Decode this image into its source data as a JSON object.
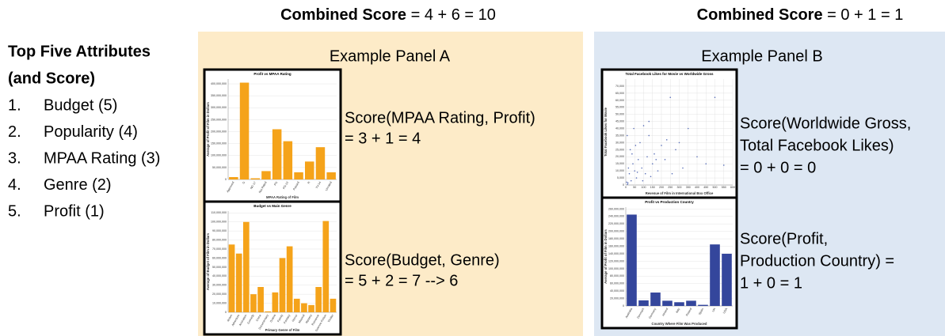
{
  "header_a": {
    "label": "Combined Score",
    "formula": "= 4 + 6 = 10"
  },
  "header_b": {
    "label": "Combined Score",
    "formula": "= 0 + 1 = 1"
  },
  "attributes": {
    "title": [
      "Top Five Attributes",
      "(and Score)"
    ],
    "items": [
      {
        "num": "1.",
        "text": "Budget (5)"
      },
      {
        "num": "2.",
        "text": "Popularity (4)"
      },
      {
        "num": "3.",
        "text": "MPAA Rating (3)"
      },
      {
        "num": "4.",
        "text": "Genre (2)"
      },
      {
        "num": "5.",
        "text": "Profit (1)"
      }
    ]
  },
  "panel_a": {
    "title": "Example Panel A",
    "scores": [
      [
        "Score(MPAA Rating, Profit)",
        "= 3 + 1 = 4"
      ],
      [
        "Score(Budget, Genre)",
        "= 5 + 2 = 7 --> 6"
      ]
    ]
  },
  "panel_b": {
    "title": "Example Panel B",
    "scores": [
      [
        "Score(Worldwide Gross,",
        " Total Facebook Likes)",
        "= 0 + 0 = 0"
      ],
      [
        "Score(Profit,",
        " Production Country) =",
        "1 + 0 = 1"
      ]
    ]
  },
  "chart_data": [
    {
      "type": "bar",
      "title": "Profit vs MPAA Rating",
      "x_label": "MPAA Rating of Film",
      "y_label": "Average of Profit of Film in Dollars",
      "color": "#f5a31a",
      "grid": true,
      "categories": [
        "Approved",
        "G",
        "NC-17",
        "Not Rated",
        "PG",
        "PG-13",
        "Passed",
        "R",
        "TV-14",
        "Unrated"
      ],
      "values": [
        10000000,
        405000000,
        5000000,
        35000000,
        210000000,
        160000000,
        30000000,
        75000000,
        135000000,
        30000000
      ],
      "ylim": [
        0,
        420000000
      ],
      "yticks": [
        0,
        {
          "value": 50000000,
          "label": "50,000,000"
        },
        {
          "value": 100000000,
          "label": "100,000,000"
        },
        {
          "value": 150000000,
          "label": "150,000,000"
        },
        {
          "value": 200000000,
          "label": "200,000,000"
        },
        {
          "value": 250000000,
          "label": "250,000,000"
        },
        {
          "value": 300000000,
          "label": "300,000,000"
        },
        {
          "value": 350000000,
          "label": "350,000,000"
        },
        {
          "value": 400000000,
          "label": "400,000,000"
        }
      ]
    },
    {
      "type": "bar",
      "title": "Budget vs Main Genre",
      "x_label": "Primary Genre of Film",
      "y_label": "Average of Budget of Film in Dollars",
      "color": "#f5a31a",
      "grid": true,
      "categories": [
        "Action",
        "Adventure",
        "Animation",
        "Comedy",
        "Crime",
        "Documentary",
        "Drama",
        "Family",
        "Fantasy",
        "Horror",
        "Musical",
        "Mystery",
        "Romance",
        "Science Fiction",
        "Thriller"
      ],
      "values": [
        75000000,
        65000000,
        100000000,
        20000000,
        28000000,
        1000000,
        22000000,
        60000000,
        73000000,
        15000000,
        10000000,
        8000000,
        28000000,
        101000000,
        15000000
      ],
      "ylim": [
        0,
        112000000
      ],
      "yticks": [
        0,
        {
          "value": 10000000,
          "label": "10,000,000"
        },
        {
          "value": 20000000,
          "label": "20,000,000"
        },
        {
          "value": 30000000,
          "label": "30,000,000"
        },
        {
          "value": 40000000,
          "label": "40,000,000"
        },
        {
          "value": 50000000,
          "label": "50,000,000"
        },
        {
          "value": 60000000,
          "label": "60,000,000"
        },
        {
          "value": 70000000,
          "label": "70,000,000"
        },
        {
          "value": 80000000,
          "label": "80,000,000"
        },
        {
          "value": 90000000,
          "label": "90,000,000"
        },
        {
          "value": 100000000,
          "label": "100,000,000"
        },
        {
          "value": 110000000,
          "label": "110,000,000"
        }
      ]
    },
    {
      "type": "scatter",
      "title": "Total Facebook Likes for Movie vs Worldwide Gross",
      "x_label": "Revenue of Film in International Box Office",
      "y_label": "Total Facebook Likes for Movie",
      "color": "#5a6fb8",
      "grid": true,
      "x": [
        5,
        10,
        15,
        20,
        25,
        30,
        40,
        45,
        50,
        60,
        70,
        80,
        90,
        100,
        110,
        120,
        130,
        140,
        150,
        160,
        180,
        200,
        220,
        250,
        280,
        300,
        320,
        350,
        400,
        450,
        500,
        550,
        12,
        35,
        65,
        95,
        130,
        170,
        230,
        260,
        8,
        55
      ],
      "values": [
        2000,
        500,
        12000,
        8000,
        25000,
        3000,
        15000,
        40000,
        10000,
        5000,
        18000,
        30000,
        12000,
        42000,
        8000,
        20000,
        35000,
        6000,
        15000,
        22000,
        10000,
        28000,
        18000,
        62000,
        25000,
        30000,
        12000,
        40000,
        20000,
        15000,
        62000,
        14000,
        1500,
        22000,
        9000,
        3000,
        45000,
        18000,
        32000,
        8000,
        35000,
        28000
      ],
      "xlim": [
        0,
        600
      ],
      "xticks": [
        0,
        50,
        100,
        150,
        200,
        250,
        300,
        350,
        400,
        450,
        500,
        550,
        600
      ],
      "ylim": [
        0,
        75000
      ],
      "yticks": [
        0,
        {
          "value": 5000,
          "label": "5,000"
        },
        {
          "value": 10000,
          "label": "10,000"
        },
        {
          "value": 15000,
          "label": "15,000"
        },
        {
          "value": 20000,
          "label": "20,000"
        },
        {
          "value": 25000,
          "label": "25,000"
        },
        {
          "value": 30000,
          "label": "30,000"
        },
        {
          "value": 35000,
          "label": "35,000"
        },
        {
          "value": 40000,
          "label": "40,000"
        },
        {
          "value": 45000,
          "label": "45,000"
        },
        {
          "value": 50000,
          "label": "50,000"
        },
        {
          "value": 55000,
          "label": "55,000"
        },
        {
          "value": 60000,
          "label": "60,000"
        },
        {
          "value": 65000,
          "label": "65,000"
        },
        {
          "value": 70000,
          "label": "70,000"
        }
      ]
    },
    {
      "type": "bar",
      "title": "Profit vs Production Country",
      "x_label": "Country Where Film Was Produced",
      "y_label": "Average of Profit of Film in Dollars",
      "color": "#34469c",
      "grid": true,
      "categories": [
        "Australia",
        "Denmark",
        "Germany",
        "Ireland",
        "Italy",
        "Poland",
        "Spain",
        "UK",
        "USA"
      ],
      "values": [
        245000000,
        15000000,
        36000000,
        14000000,
        10000000,
        14000000,
        3000000,
        165000000,
        140000000
      ],
      "ylim": [
        0,
        265000000
      ],
      "yticks": [
        0,
        {
          "value": 20000000,
          "label": "20,000,000"
        },
        {
          "value": 40000000,
          "label": "40,000,000"
        },
        {
          "value": 60000000,
          "label": "60,000,000"
        },
        {
          "value": 80000000,
          "label": "80,000,000"
        },
        {
          "value": 100000000,
          "label": "100,000,000"
        },
        {
          "value": 120000000,
          "label": "120,000,000"
        },
        {
          "value": 140000000,
          "label": "140,000,000"
        },
        {
          "value": 160000000,
          "label": "160,000,000"
        },
        {
          "value": 180000000,
          "label": "180,000,000"
        },
        {
          "value": 200000000,
          "label": "200,000,000"
        },
        {
          "value": 220000000,
          "label": "220,000,000"
        },
        {
          "value": 240000000,
          "label": "240,000,000"
        },
        {
          "value": 260000000,
          "label": "260,000,000"
        }
      ]
    }
  ]
}
